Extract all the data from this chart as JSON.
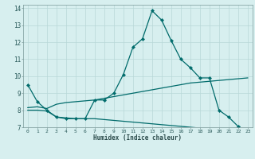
{
  "xlabel": "Humidex (Indice chaleur)",
  "background_color": "#d7efef",
  "grid_color": "#b8d8d8",
  "line_color": "#006b6b",
  "xlim": [
    -0.5,
    23.5
  ],
  "ylim": [
    7.0,
    14.2
  ],
  "x_ticks": [
    0,
    1,
    2,
    3,
    4,
    5,
    6,
    7,
    8,
    9,
    10,
    11,
    12,
    13,
    14,
    15,
    16,
    17,
    18,
    19,
    20,
    21,
    22,
    23
  ],
  "y_ticks": [
    7,
    8,
    9,
    10,
    11,
    12,
    13,
    14
  ],
  "line1_x": [
    0,
    1,
    2,
    3,
    4,
    5,
    6,
    7,
    8,
    9,
    10,
    11,
    12,
    13,
    14,
    15,
    16,
    17,
    18,
    19,
    20,
    21,
    22,
    23
  ],
  "line1_y": [
    9.5,
    8.5,
    8.0,
    7.6,
    7.5,
    7.5,
    7.5,
    8.6,
    8.6,
    9.0,
    10.1,
    11.7,
    12.2,
    13.85,
    13.3,
    12.1,
    11.0,
    10.5,
    9.9,
    9.9,
    8.0,
    7.6,
    7.05,
    6.75
  ],
  "line2_x": [
    0,
    1,
    2,
    3,
    4,
    5,
    6,
    7,
    8,
    9,
    10,
    11,
    12,
    13,
    14,
    15,
    16,
    17,
    18,
    19,
    20,
    21,
    22,
    23
  ],
  "line2_y": [
    8.15,
    8.2,
    8.1,
    8.35,
    8.45,
    8.5,
    8.55,
    8.6,
    8.7,
    8.8,
    8.9,
    9.0,
    9.1,
    9.2,
    9.3,
    9.4,
    9.5,
    9.6,
    9.65,
    9.7,
    9.75,
    9.8,
    9.85,
    9.9
  ],
  "line3_x": [
    0,
    1,
    2,
    3,
    4,
    5,
    6,
    7,
    8,
    9,
    10,
    11,
    12,
    13,
    14,
    15,
    16,
    17,
    18,
    19,
    20,
    21,
    22,
    23
  ],
  "line3_y": [
    8.0,
    8.0,
    7.95,
    7.6,
    7.55,
    7.5,
    7.5,
    7.5,
    7.45,
    7.4,
    7.35,
    7.3,
    7.25,
    7.2,
    7.15,
    7.1,
    7.05,
    7.0,
    6.95,
    6.9,
    6.85,
    6.8,
    6.75,
    6.7
  ]
}
